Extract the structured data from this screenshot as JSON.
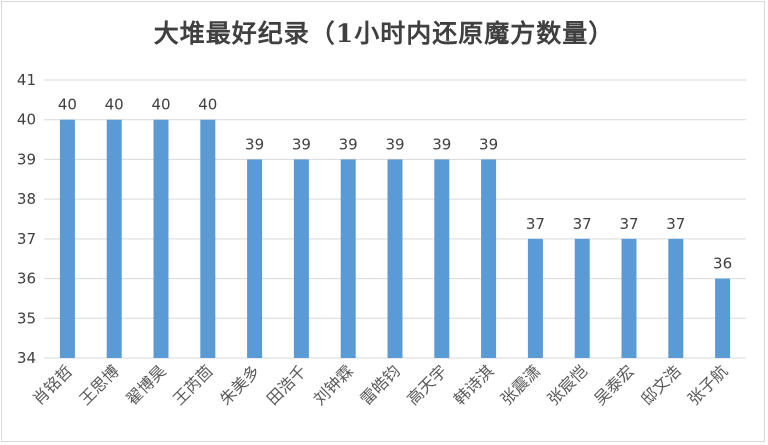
{
  "chart_data": {
    "type": "bar",
    "title": "大堆最好纪录（1小时内还原魔方数量）",
    "categories": [
      "肖铭哲",
      "王思博",
      "翟博昊",
      "王芮茴",
      "朱美多",
      "田浩千",
      "刘钟霖",
      "雷皓钧",
      "高天宇",
      "韩诗淇",
      "张震潇",
      "张宸恺",
      "吴泰宏",
      "邸文浩",
      "张子航"
    ],
    "values": [
      40,
      40,
      40,
      40,
      39,
      39,
      39,
      39,
      39,
      39,
      37,
      37,
      37,
      37,
      36
    ],
    "xlabel": "",
    "ylabel": "",
    "ylim": [
      34,
      41
    ],
    "yticks": [
      34,
      35,
      36,
      37,
      38,
      39,
      40,
      41
    ],
    "grid": true,
    "legend": "none",
    "bar_color": "#5b9bd5",
    "grid_color": "#d9d9d9"
  }
}
